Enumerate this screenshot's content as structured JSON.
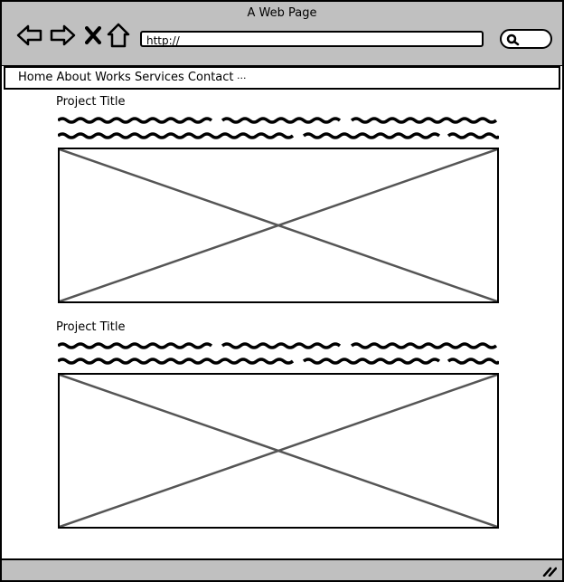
{
  "window": {
    "title": "A Web Page"
  },
  "toolbar": {
    "url": "http://"
  },
  "menu": {
    "items": [
      "Home",
      "About",
      "Works",
      "Services",
      "Contact"
    ],
    "more": "..."
  },
  "projects": [
    {
      "title": "Project Title"
    },
    {
      "title": "Project Title"
    }
  ],
  "colors": {
    "chrome": "#c0c0c0",
    "border": "#000000",
    "placeholder_line": "#555555"
  }
}
